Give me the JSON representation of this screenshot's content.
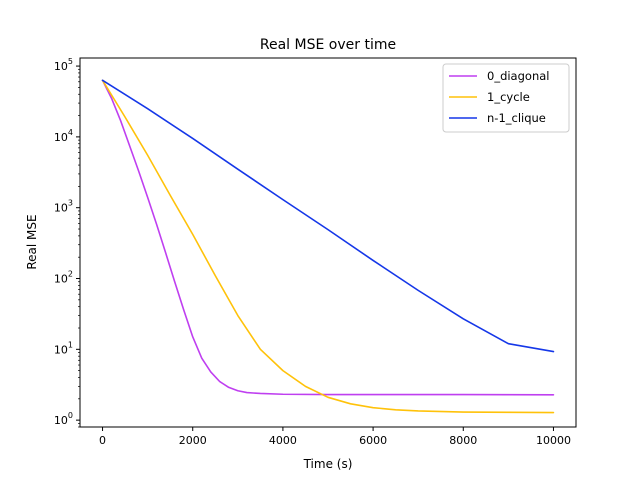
{
  "chart_data": {
    "type": "line",
    "title": "Real MSE over time",
    "xlabel": "Time (s)",
    "ylabel": "Real MSE",
    "xlim": [
      -500,
      10500
    ],
    "ylim": [
      0.8,
      130000
    ],
    "yscale": "log",
    "grid": false,
    "legend_position": "top-right",
    "x_ticks": [
      {
        "value": 0,
        "label": "0"
      },
      {
        "value": 2000,
        "label": "2000"
      },
      {
        "value": 4000,
        "label": "4000"
      },
      {
        "value": 6000,
        "label": "6000"
      },
      {
        "value": 8000,
        "label": "8000"
      },
      {
        "value": 10000,
        "label": "10000"
      }
    ],
    "y_ticks": [
      {
        "value": 1,
        "base": "10",
        "exp": "0"
      },
      {
        "value": 10,
        "base": "10",
        "exp": "1"
      },
      {
        "value": 100,
        "base": "10",
        "exp": "2"
      },
      {
        "value": 1000,
        "base": "10",
        "exp": "3"
      },
      {
        "value": 10000,
        "base": "10",
        "exp": "4"
      },
      {
        "value": 100000,
        "base": "10",
        "exp": "5"
      }
    ],
    "series": [
      {
        "name": "0_diagonal",
        "color": "#bf3ff0",
        "x": [
          0,
          200,
          400,
          600,
          800,
          1000,
          1200,
          1400,
          1600,
          1800,
          2000,
          2200,
          2400,
          2600,
          2800,
          3000,
          3200,
          3500,
          4000,
          5000,
          6000,
          7000,
          8000,
          9000,
          10000
        ],
        "y": [
          63000,
          35000,
          17000,
          7500,
          3300,
          1400,
          580,
          230,
          90,
          36,
          15,
          7.5,
          4.8,
          3.5,
          2.9,
          2.6,
          2.45,
          2.38,
          2.32,
          2.3,
          2.3,
          2.3,
          2.3,
          2.29,
          2.28
        ]
      },
      {
        "name": "1_cycle",
        "color": "#ffc20a",
        "x": [
          0,
          500,
          1000,
          1500,
          2000,
          2500,
          3000,
          3500,
          4000,
          4500,
          5000,
          5500,
          6000,
          6500,
          7000,
          8000,
          9000,
          10000
        ],
        "y": [
          63000,
          19000,
          5500,
          1500,
          420,
          110,
          30,
          10,
          5,
          3,
          2.1,
          1.7,
          1.5,
          1.4,
          1.35,
          1.3,
          1.29,
          1.28
        ]
      },
      {
        "name": "n-1_clique",
        "color": "#1537e8",
        "x": [
          0,
          1000,
          2000,
          3000,
          4000,
          5000,
          6000,
          7000,
          8000,
          9000,
          10000
        ],
        "y": [
          63000,
          25000,
          9500,
          3500,
          1300,
          490,
          180,
          68,
          27,
          12,
          9.3
        ]
      }
    ]
  }
}
